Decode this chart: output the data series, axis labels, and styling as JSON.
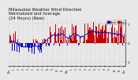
{
  "background_color": "#e8e8e8",
  "plot_bg_color": "#e8e8e8",
  "grid_color": "#aaaaaa",
  "bar_color_pos": "#cc0000",
  "bar_color_neg": "#0000cc",
  "avg_line_color": "#0000cc",
  "avg_line_color2": "#cc0000",
  "ylim_min": -1.2,
  "ylim_max": 1.2,
  "n_bars": 288,
  "title_fontsize": 3.8,
  "tick_fontsize": 2.8,
  "legend_norm_color": "#0000cc",
  "legend_avg_color": "#cc0000"
}
